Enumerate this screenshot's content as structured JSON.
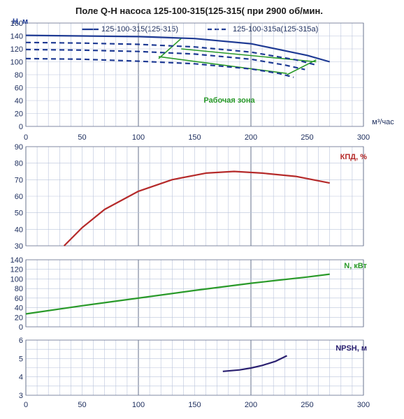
{
  "page": {
    "title": "Поле Q-H насоса 125-100-315(125-315( при 2900 об/мин."
  },
  "legend": {
    "solid_label": "125-100-315(125-315)",
    "dashed_label": "125-100-315а(125-315а)",
    "zone_label": "Рабочая зона"
  },
  "colors": {
    "qh": "#1f3b94",
    "efficiency": "#b52a2a",
    "power": "#2a9a2a",
    "npsh": "#2a2070",
    "zone": "#2a9a2a"
  },
  "chart_data": [
    {
      "type": "line",
      "id": "qh",
      "ylabel": "H, м",
      "xlabel": "м³/час",
      "xlim": [
        0,
        300
      ],
      "ylim": [
        0,
        160
      ],
      "xticks": [
        "0",
        "50",
        "100",
        "150",
        "200",
        "250",
        "300"
      ],
      "yticks": [
        "0",
        "20",
        "40",
        "60",
        "80",
        "100",
        "120",
        "140",
        "160"
      ],
      "grid": true,
      "legend_position": "top",
      "series": [
        {
          "name": "125-100-315(125-315)",
          "style": "solid",
          "x": [
            0,
            50,
            100,
            150,
            200,
            250,
            270
          ],
          "y": [
            141,
            140,
            139,
            136,
            128,
            110,
            100
          ]
        },
        {
          "name": "125-100-315а(125-315а)",
          "style": "dashed",
          "x": [
            0,
            50,
            100,
            150,
            200,
            240,
            258
          ],
          "y": [
            130,
            129,
            127,
            123,
            115,
            103,
            95
          ]
        },
        {
          "name": "125-100-315а(125-315а)",
          "style": "dashed",
          "x": [
            0,
            50,
            100,
            150,
            200,
            230,
            248
          ],
          "y": [
            119,
            118,
            116,
            112,
            104,
            95,
            88
          ]
        },
        {
          "name": "125-100-315а(125-315а)",
          "style": "dashed",
          "x": [
            0,
            50,
            100,
            150,
            200,
            225,
            238
          ],
          "y": [
            105,
            104,
            101,
            97,
            89,
            82,
            76
          ]
        }
      ],
      "annotations": [
        {
          "text": "Рабочая зона",
          "x": 158,
          "y": 37
        }
      ],
      "working_zone": {
        "left_boundary": {
          "x": [
            118,
            138
          ],
          "y": [
            105,
            136
          ]
        },
        "right_boundary": {
          "x": [
            232,
            258
          ],
          "y": [
            80,
            103
          ]
        },
        "upper_edge": {
          "x": [
            138,
            258
          ],
          "y": [
            120,
            100
          ]
        },
        "lower_edge": {
          "x": [
            118,
            232
          ],
          "y": [
            108,
            82
          ]
        }
      }
    },
    {
      "type": "line",
      "id": "efficiency",
      "ylabel": "КПД, %",
      "xlim": [
        0,
        300
      ],
      "ylim": [
        30,
        90
      ],
      "yticks": [
        "30",
        "40",
        "50",
        "60",
        "70",
        "80",
        "90"
      ],
      "grid": true,
      "series": [
        {
          "name": "КПД, %",
          "x": [
            34,
            50,
            70,
            100,
            130,
            160,
            185,
            210,
            240,
            270
          ],
          "y": [
            30,
            41,
            52,
            63,
            70,
            74,
            75,
            74,
            72,
            68
          ]
        }
      ]
    },
    {
      "type": "line",
      "id": "power",
      "ylabel": "N, кВт",
      "xlim": [
        0,
        300
      ],
      "ylim": [
        0,
        140
      ],
      "yticks": [
        "0",
        "20",
        "40",
        "60",
        "80",
        "100",
        "120",
        "140"
      ],
      "grid": true,
      "series": [
        {
          "name": "N, кВт",
          "x": [
            0,
            50,
            100,
            150,
            200,
            250,
            270
          ],
          "y": [
            27,
            44,
            60,
            76,
            91,
            104,
            110
          ]
        }
      ]
    },
    {
      "type": "line",
      "id": "npsh",
      "ylabel": "NPSH, м",
      "xlabel": "",
      "xlim": [
        0,
        300
      ],
      "ylim": [
        3,
        6
      ],
      "xticks": [
        "0",
        "50",
        "100",
        "150",
        "200",
        "250",
        "300"
      ],
      "yticks": [
        "3",
        "4",
        "5",
        "6"
      ],
      "grid": true,
      "series": [
        {
          "name": "NPSH, м",
          "x": [
            175,
            190,
            200,
            210,
            222,
            232
          ],
          "y": [
            4.3,
            4.38,
            4.48,
            4.62,
            4.85,
            5.15
          ]
        }
      ]
    }
  ]
}
